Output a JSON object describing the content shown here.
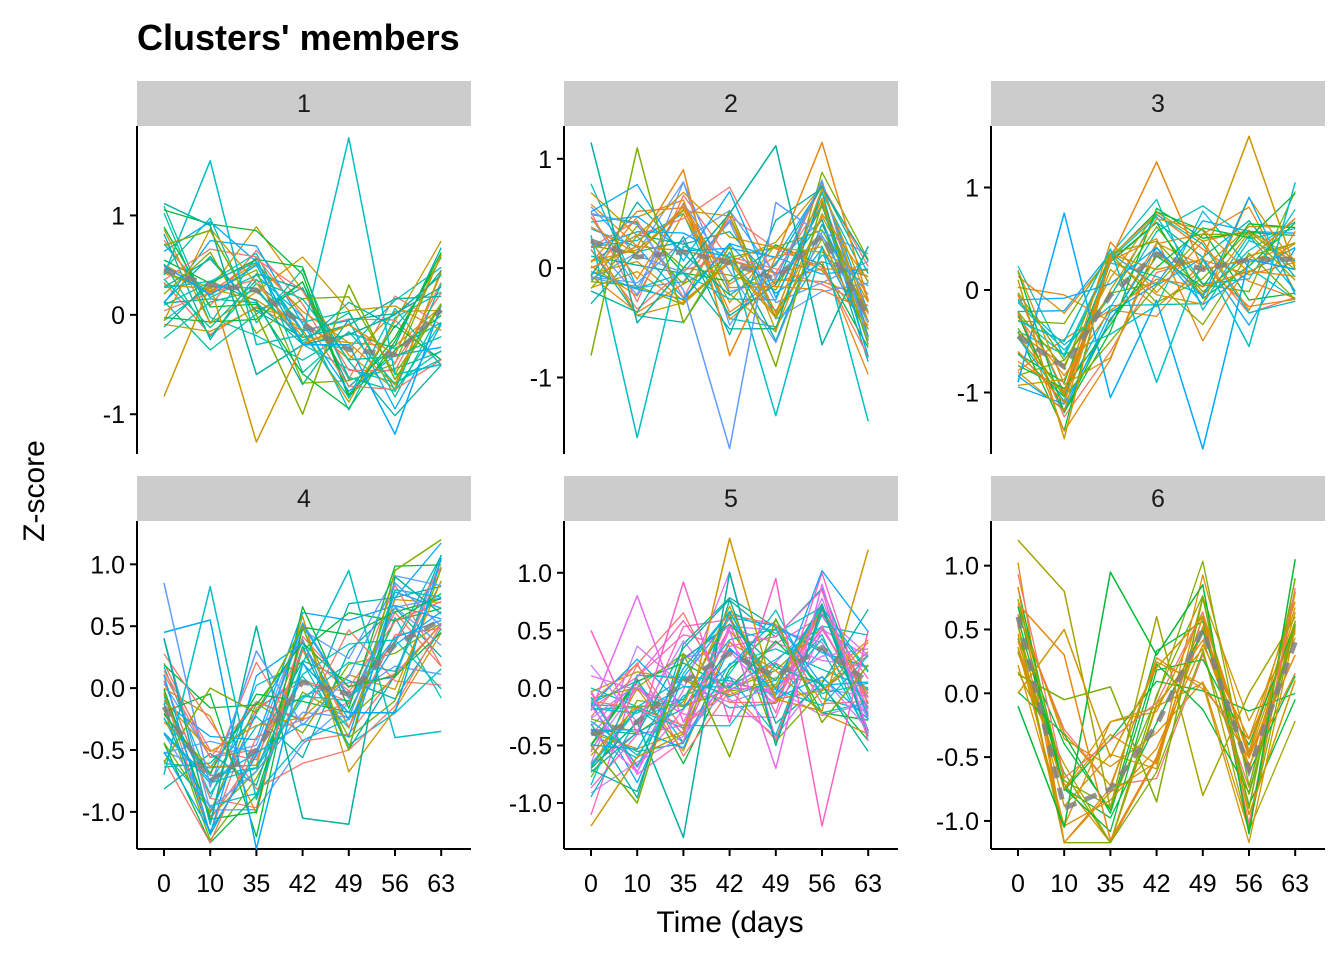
{
  "chart_data": {
    "type": "line",
    "title": "Clusters' members",
    "xlabel": "Time (days",
    "ylabel": "Z-score",
    "x": [
      "0",
      "10",
      "35",
      "42",
      "49",
      "56",
      "63"
    ],
    "grid": false,
    "facets": [
      {
        "name": "1",
        "ylim": [
          -1.4,
          1.9
        ],
        "yticks": [
          "1",
          "0",
          "-1"
        ],
        "ytick_values": [
          1,
          0,
          -1
        ],
        "members": 35,
        "palette": [
          "#00A9FF",
          "#00BFC4",
          "#00B0A0",
          "#7CAE00",
          "#CD9600",
          "#F8766D",
          "#00BA38",
          "#00C19F"
        ],
        "center": {
          "color": "#808080",
          "values": [
            0.45,
            0.3,
            0.25,
            -0.1,
            -0.35,
            -0.4,
            0.05
          ]
        },
        "highlights": [
          {
            "color": "#00BFC4",
            "values": [
              0.4,
              1.55,
              -0.3,
              -0.2,
              1.78,
              -0.6,
              -0.5
            ]
          },
          {
            "color": "#00B0A0",
            "values": [
              1.12,
              0.9,
              -0.6,
              -0.3,
              -0.2,
              0.0,
              0.4
            ]
          },
          {
            "color": "#CD9600",
            "values": [
              -0.82,
              0.3,
              -1.28,
              -0.3,
              -0.1,
              -0.4,
              0.6
            ]
          },
          {
            "color": "#00A9FF",
            "values": [
              0.5,
              0.2,
              0.5,
              -0.3,
              -0.3,
              -1.2,
              0.1
            ]
          },
          {
            "color": "#7CAE00",
            "values": [
              0.7,
              0.85,
              0.0,
              -1.0,
              0.3,
              -0.65,
              0.1
            ]
          }
        ]
      },
      {
        "name": "2",
        "ylim": [
          -1.7,
          1.3
        ],
        "yticks": [
          "1",
          "0",
          "-1"
        ],
        "ytick_values": [
          1,
          0,
          -1
        ],
        "members": 40,
        "palette": [
          "#00BFC4",
          "#00A9FF",
          "#00B0A0",
          "#7CAE00",
          "#CD9600",
          "#F8766D",
          "#00BA38",
          "#619CFF",
          "#E68613"
        ],
        "center": {
          "color": "#808080",
          "values": [
            0.25,
            0.1,
            0.15,
            0.05,
            -0.1,
            0.3,
            -0.45
          ]
        },
        "highlights": [
          {
            "color": "#00BFC4",
            "values": [
              0.3,
              -1.55,
              0.2,
              0.1,
              -1.35,
              0.2,
              -1.4
            ]
          },
          {
            "color": "#619CFF",
            "values": [
              0.5,
              0.4,
              -0.2,
              -1.65,
              0.6,
              0.3,
              -0.5
            ]
          },
          {
            "color": "#E68613",
            "values": [
              0.0,
              0.2,
              0.9,
              -0.8,
              0.1,
              1.15,
              -0.3
            ]
          },
          {
            "color": "#00B0A0",
            "values": [
              1.15,
              -0.5,
              0.0,
              0.5,
              1.12,
              -0.7,
              0.2
            ]
          },
          {
            "color": "#7CAE00",
            "values": [
              -0.8,
              1.1,
              -0.5,
              0.2,
              -0.9,
              0.6,
              -0.7
            ]
          }
        ]
      },
      {
        "name": "3",
        "ylim": [
          -1.6,
          1.6
        ],
        "yticks": [
          "1",
          "0",
          "-1"
        ],
        "ytick_values": [
          1,
          0,
          -1
        ],
        "members": 35,
        "palette": [
          "#00BFC4",
          "#00A9FF",
          "#00B0A0",
          "#7CAE00",
          "#CD9600",
          "#E68613",
          "#00BA38",
          "#F8766D"
        ],
        "center": {
          "color": "#808080",
          "values": [
            -0.45,
            -0.75,
            -0.05,
            0.35,
            0.2,
            0.3,
            0.3
          ]
        },
        "highlights": [
          {
            "color": "#00A9FF",
            "values": [
              -0.9,
              0.75,
              -1.05,
              -0.1,
              -1.55,
              0.3,
              0.2
            ]
          },
          {
            "color": "#CD9600",
            "values": [
              0.1,
              -1.45,
              0.35,
              0.2,
              0.3,
              1.5,
              0.2
            ]
          },
          {
            "color": "#E68613",
            "values": [
              -0.6,
              -1.1,
              0.3,
              1.25,
              0.2,
              0.3,
              0.7
            ]
          },
          {
            "color": "#00BFC4",
            "values": [
              -0.3,
              -0.5,
              0.4,
              -0.9,
              0.3,
              -0.55,
              1.05
            ]
          }
        ]
      },
      {
        "name": "4",
        "ylim": [
          -1.3,
          1.35
        ],
        "yticks": [
          "1.0",
          "0.5",
          "0.0",
          "-0.5",
          "-1.0"
        ],
        "ytick_values": [
          1,
          0.5,
          0,
          -0.5,
          -1
        ],
        "members": 40,
        "palette": [
          "#00A9FF",
          "#00BFC4",
          "#00B0A0",
          "#7CAE00",
          "#CD9600",
          "#F8766D",
          "#00BA38",
          "#619CFF"
        ],
        "center": {
          "color": "#808080",
          "values": [
            -0.15,
            -0.75,
            -0.5,
            0.05,
            -0.05,
            0.35,
            0.55
          ]
        },
        "highlights": [
          {
            "color": "#00B0A0",
            "values": [
              0.4,
              -1.1,
              0.5,
              -1.05,
              -1.1,
              0.9,
              0.6
            ]
          },
          {
            "color": "#00A9FF",
            "values": [
              0.45,
              0.55,
              -1.3,
              0.2,
              -0.2,
              -0.2,
              1.05
            ]
          },
          {
            "color": "#619CFF",
            "values": [
              0.85,
              -0.8,
              0.3,
              -0.3,
              0.1,
              0.85,
              0.5
            ]
          },
          {
            "color": "#7CAE00",
            "values": [
              -0.6,
              0.0,
              -0.2,
              0.5,
              -0.5,
              0.95,
              1.2
            ]
          },
          {
            "color": "#00BFC4",
            "values": [
              -0.7,
              0.82,
              -0.9,
              0.2,
              0.95,
              -0.4,
              -0.35
            ]
          }
        ]
      },
      {
        "name": "5",
        "ylim": [
          -1.4,
          1.45
        ],
        "yticks": [
          "1.0",
          "0.5",
          "0.0",
          "-0.5",
          "-1.0"
        ],
        "ytick_values": [
          1,
          0.5,
          0,
          -0.5,
          -1
        ],
        "members": 50,
        "palette": [
          "#FF61C3",
          "#00BFC4",
          "#00A9FF",
          "#7CAE00",
          "#CD9600",
          "#F8766D",
          "#00B0A0",
          "#00BA38",
          "#E76BF3",
          "#C77CFF"
        ],
        "center": {
          "color": "#808080",
          "values": [
            -0.4,
            -0.3,
            0.05,
            0.3,
            0.1,
            0.35,
            0.05
          ]
        },
        "highlights": [
          {
            "color": "#CD9600",
            "values": [
              -1.2,
              -0.6,
              -0.4,
              1.3,
              -0.1,
              -0.2,
              1.2
            ]
          },
          {
            "color": "#00B0A0",
            "values": [
              -0.7,
              -0.3,
              -1.3,
              1.0,
              -0.5,
              0.7,
              -0.4
            ]
          },
          {
            "color": "#FF61C3",
            "values": [
              0.5,
              -0.4,
              0.92,
              -0.3,
              0.95,
              -1.2,
              0.5
            ]
          },
          {
            "color": "#E76BF3",
            "values": [
              -0.2,
              0.8,
              -0.3,
              0.5,
              -0.7,
              0.9,
              -0.4
            ]
          },
          {
            "color": "#7CAE00",
            "values": [
              -0.5,
              -1.0,
              0.3,
              -0.6,
              0.6,
              -0.3,
              0.2
            ]
          }
        ]
      },
      {
        "name": "6",
        "ylim": [
          -1.22,
          1.35
        ],
        "yticks": [
          "1.0",
          "0.5",
          "0.0",
          "-0.5",
          "-1.0"
        ],
        "ytick_values": [
          1,
          0.5,
          0,
          -0.5,
          -1
        ],
        "members": 22,
        "palette": [
          "#7CAE00",
          "#CD9600",
          "#E68613",
          "#F8766D",
          "#00BA38",
          "#D89000",
          "#A3A500"
        ],
        "center": {
          "color": "#808080",
          "values": [
            0.6,
            -0.9,
            -0.75,
            -0.25,
            0.5,
            -0.6,
            0.4
          ]
        },
        "highlights": [
          {
            "color": "#A3A500",
            "values": [
              1.2,
              0.8,
              -0.9,
              0.6,
              -0.8,
              0.0,
              0.6
            ]
          },
          {
            "color": "#00BA38",
            "values": [
              -0.1,
              -1.05,
              0.95,
              0.3,
              0.85,
              -1.1,
              1.05
            ]
          },
          {
            "color": "#E68613",
            "values": [
              0.7,
              0.3,
              -1.15,
              -0.5,
              0.6,
              -0.5,
              0.3
            ]
          },
          {
            "color": "#7CAE00",
            "values": [
              0.15,
              -0.05,
              0.05,
              -0.85,
              0.75,
              -0.9,
              0.9
            ]
          },
          {
            "color": "#CD9600",
            "values": [
              0.0,
              0.5,
              -0.5,
              0.2,
              0.6,
              -0.95,
              0.1
            ]
          }
        ]
      }
    ]
  }
}
